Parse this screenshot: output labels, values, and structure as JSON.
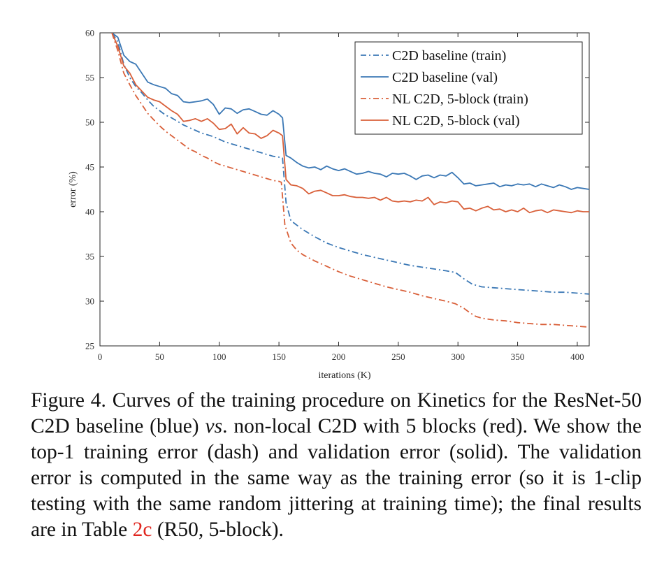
{
  "chart_data": {
    "type": "line",
    "xlabel": "iterations (K)",
    "ylabel": "error (%)",
    "xlim": [
      0,
      410
    ],
    "ylim": [
      25,
      60
    ],
    "xticks": [
      0,
      50,
      100,
      150,
      200,
      250,
      300,
      350,
      400
    ],
    "yticks": [
      25,
      30,
      35,
      40,
      45,
      50,
      55,
      60
    ],
    "grid": false,
    "legend_position": "top-right",
    "series": [
      {
        "name": "C2D baseline (train)",
        "color": "#3b78b5",
        "style": "dashdot",
        "points": [
          [
            10,
            60
          ],
          [
            15,
            59
          ],
          [
            20,
            56.5
          ],
          [
            25,
            55
          ],
          [
            30,
            54
          ],
          [
            35,
            53.3
          ],
          [
            40,
            52.5
          ],
          [
            45,
            51.8
          ],
          [
            50,
            51.3
          ],
          [
            55,
            50.8
          ],
          [
            60,
            50.5
          ],
          [
            65,
            50.1
          ],
          [
            70,
            49.7
          ],
          [
            75,
            49.4
          ],
          [
            80,
            49.1
          ],
          [
            85,
            48.8
          ],
          [
            90,
            48.6
          ],
          [
            95,
            48.4
          ],
          [
            100,
            48.1
          ],
          [
            105,
            47.8
          ],
          [
            110,
            47.6
          ],
          [
            115,
            47.4
          ],
          [
            120,
            47.2
          ],
          [
            125,
            47.0
          ],
          [
            130,
            46.8
          ],
          [
            135,
            46.6
          ],
          [
            140,
            46.4
          ],
          [
            145,
            46.2
          ],
          [
            150,
            46.1
          ],
          [
            153,
            46
          ],
          [
            156,
            41
          ],
          [
            160,
            39
          ],
          [
            170,
            38
          ],
          [
            180,
            37.2
          ],
          [
            190,
            36.5
          ],
          [
            200,
            36
          ],
          [
            210,
            35.6
          ],
          [
            220,
            35.2
          ],
          [
            230,
            34.9
          ],
          [
            240,
            34.6
          ],
          [
            250,
            34.3
          ],
          [
            260,
            34.0
          ],
          [
            270,
            33.8
          ],
          [
            280,
            33.6
          ],
          [
            290,
            33.4
          ],
          [
            298,
            33.2
          ],
          [
            305,
            32.5
          ],
          [
            312,
            31.9
          ],
          [
            320,
            31.6
          ],
          [
            330,
            31.5
          ],
          [
            340,
            31.4
          ],
          [
            350,
            31.3
          ],
          [
            360,
            31.2
          ],
          [
            370,
            31.1
          ],
          [
            380,
            31.0
          ],
          [
            390,
            31.0
          ],
          [
            400,
            30.9
          ],
          [
            410,
            30.8
          ]
        ]
      },
      {
        "name": "C2D baseline (val)",
        "color": "#3b78b5",
        "style": "solid",
        "points": [
          [
            10,
            60
          ],
          [
            15,
            59.5
          ],
          [
            20,
            57.5
          ],
          [
            25,
            56.8
          ],
          [
            30,
            56.5
          ],
          [
            35,
            55.5
          ],
          [
            40,
            54.5
          ],
          [
            45,
            54.2
          ],
          [
            50,
            54.0
          ],
          [
            55,
            53.8
          ],
          [
            60,
            53.2
          ],
          [
            65,
            53.0
          ],
          [
            70,
            52.3
          ],
          [
            75,
            52.2
          ],
          [
            80,
            52.3
          ],
          [
            85,
            52.4
          ],
          [
            90,
            52.6
          ],
          [
            95,
            52.0
          ],
          [
            100,
            50.9
          ],
          [
            105,
            51.6
          ],
          [
            110,
            51.5
          ],
          [
            115,
            51.0
          ],
          [
            120,
            51.4
          ],
          [
            125,
            51.5
          ],
          [
            130,
            51.2
          ],
          [
            135,
            50.9
          ],
          [
            140,
            50.8
          ],
          [
            145,
            51.3
          ],
          [
            150,
            50.9
          ],
          [
            153,
            50.5
          ],
          [
            156,
            46.3
          ],
          [
            160,
            46.0
          ],
          [
            165,
            45.5
          ],
          [
            170,
            45.1
          ],
          [
            175,
            44.9
          ],
          [
            180,
            45.0
          ],
          [
            185,
            44.7
          ],
          [
            190,
            45.1
          ],
          [
            195,
            44.8
          ],
          [
            200,
            44.6
          ],
          [
            205,
            44.8
          ],
          [
            210,
            44.5
          ],
          [
            215,
            44.2
          ],
          [
            220,
            44.3
          ],
          [
            225,
            44.5
          ],
          [
            230,
            44.3
          ],
          [
            235,
            44.2
          ],
          [
            240,
            43.9
          ],
          [
            245,
            44.3
          ],
          [
            250,
            44.2
          ],
          [
            255,
            44.3
          ],
          [
            260,
            44.0
          ],
          [
            265,
            43.6
          ],
          [
            270,
            44.0
          ],
          [
            275,
            44.1
          ],
          [
            280,
            43.8
          ],
          [
            285,
            44.1
          ],
          [
            290,
            44.0
          ],
          [
            295,
            44.4
          ],
          [
            300,
            43.8
          ],
          [
            305,
            43.1
          ],
          [
            310,
            43.2
          ],
          [
            315,
            42.9
          ],
          [
            320,
            43.0
          ],
          [
            325,
            43.1
          ],
          [
            330,
            43.2
          ],
          [
            335,
            42.8
          ],
          [
            340,
            43.0
          ],
          [
            345,
            42.9
          ],
          [
            350,
            43.1
          ],
          [
            355,
            43.0
          ],
          [
            360,
            43.1
          ],
          [
            365,
            42.8
          ],
          [
            370,
            43.1
          ],
          [
            375,
            42.9
          ],
          [
            380,
            42.7
          ],
          [
            385,
            43.0
          ],
          [
            390,
            42.8
          ],
          [
            395,
            42.5
          ],
          [
            400,
            42.7
          ],
          [
            405,
            42.6
          ],
          [
            410,
            42.5
          ]
        ]
      },
      {
        "name": "NL C2D, 5-block (train)",
        "color": "#d9603a",
        "style": "dashdot",
        "points": [
          [
            10,
            60
          ],
          [
            15,
            58
          ],
          [
            20,
            55.5
          ],
          [
            25,
            54.2
          ],
          [
            30,
            53
          ],
          [
            35,
            52
          ],
          [
            40,
            51
          ],
          [
            45,
            50.3
          ],
          [
            50,
            49.6
          ],
          [
            55,
            49.0
          ],
          [
            60,
            48.5
          ],
          [
            65,
            48.0
          ],
          [
            70,
            47.5
          ],
          [
            75,
            47.0
          ],
          [
            80,
            46.7
          ],
          [
            85,
            46.3
          ],
          [
            90,
            46.0
          ],
          [
            95,
            45.6
          ],
          [
            100,
            45.3
          ],
          [
            105,
            45.1
          ],
          [
            110,
            44.9
          ],
          [
            115,
            44.7
          ],
          [
            120,
            44.5
          ],
          [
            125,
            44.3
          ],
          [
            130,
            44.1
          ],
          [
            135,
            43.9
          ],
          [
            140,
            43.7
          ],
          [
            145,
            43.5
          ],
          [
            150,
            43.4
          ],
          [
            152,
            43.3
          ],
          [
            155,
            38.5
          ],
          [
            160,
            36.5
          ],
          [
            165,
            35.7
          ],
          [
            170,
            35.2
          ],
          [
            180,
            34.5
          ],
          [
            190,
            33.9
          ],
          [
            200,
            33.3
          ],
          [
            210,
            32.8
          ],
          [
            220,
            32.4
          ],
          [
            230,
            32.0
          ],
          [
            240,
            31.6
          ],
          [
            250,
            31.3
          ],
          [
            260,
            31.0
          ],
          [
            270,
            30.6
          ],
          [
            280,
            30.3
          ],
          [
            290,
            30.0
          ],
          [
            298,
            29.7
          ],
          [
            305,
            29.2
          ],
          [
            310,
            28.7
          ],
          [
            315,
            28.3
          ],
          [
            320,
            28.1
          ],
          [
            330,
            27.9
          ],
          [
            340,
            27.8
          ],
          [
            350,
            27.6
          ],
          [
            360,
            27.5
          ],
          [
            370,
            27.4
          ],
          [
            380,
            27.4
          ],
          [
            390,
            27.3
          ],
          [
            400,
            27.2
          ],
          [
            410,
            27.1
          ]
        ]
      },
      {
        "name": "NL C2D, 5-block (val)",
        "color": "#d9603a",
        "style": "solid",
        "points": [
          [
            10,
            60
          ],
          [
            15,
            58.5
          ],
          [
            20,
            56.3
          ],
          [
            25,
            55.5
          ],
          [
            30,
            54.2
          ],
          [
            35,
            53.5
          ],
          [
            40,
            52.8
          ],
          [
            45,
            52.5
          ],
          [
            50,
            52.3
          ],
          [
            55,
            51.8
          ],
          [
            60,
            51.3
          ],
          [
            65,
            50.9
          ],
          [
            70,
            50.1
          ],
          [
            75,
            50.2
          ],
          [
            80,
            50.4
          ],
          [
            85,
            50.1
          ],
          [
            90,
            50.4
          ],
          [
            95,
            49.9
          ],
          [
            100,
            49.2
          ],
          [
            105,
            49.3
          ],
          [
            110,
            49.8
          ],
          [
            115,
            48.7
          ],
          [
            120,
            49.4
          ],
          [
            125,
            48.8
          ],
          [
            130,
            48.7
          ],
          [
            135,
            48.2
          ],
          [
            140,
            48.5
          ],
          [
            145,
            49.1
          ],
          [
            150,
            48.8
          ],
          [
            153,
            48.5
          ],
          [
            156,
            43.6
          ],
          [
            160,
            43.0
          ],
          [
            165,
            42.9
          ],
          [
            170,
            42.6
          ],
          [
            175,
            42.0
          ],
          [
            180,
            42.3
          ],
          [
            185,
            42.4
          ],
          [
            190,
            42.1
          ],
          [
            195,
            41.8
          ],
          [
            200,
            41.8
          ],
          [
            205,
            41.9
          ],
          [
            210,
            41.7
          ],
          [
            215,
            41.6
          ],
          [
            220,
            41.6
          ],
          [
            225,
            41.5
          ],
          [
            230,
            41.6
          ],
          [
            235,
            41.3
          ],
          [
            240,
            41.6
          ],
          [
            245,
            41.2
          ],
          [
            250,
            41.1
          ],
          [
            255,
            41.2
          ],
          [
            260,
            41.1
          ],
          [
            265,
            41.3
          ],
          [
            270,
            41.2
          ],
          [
            275,
            41.6
          ],
          [
            280,
            40.8
          ],
          [
            285,
            41.1
          ],
          [
            290,
            41.0
          ],
          [
            295,
            41.2
          ],
          [
            300,
            41.1
          ],
          [
            305,
            40.3
          ],
          [
            310,
            40.4
          ],
          [
            315,
            40.1
          ],
          [
            320,
            40.4
          ],
          [
            325,
            40.6
          ],
          [
            330,
            40.2
          ],
          [
            335,
            40.3
          ],
          [
            340,
            40.0
          ],
          [
            345,
            40.2
          ],
          [
            350,
            40.0
          ],
          [
            355,
            40.4
          ],
          [
            360,
            39.9
          ],
          [
            365,
            40.1
          ],
          [
            370,
            40.2
          ],
          [
            375,
            39.9
          ],
          [
            380,
            40.2
          ],
          [
            385,
            40.1
          ],
          [
            390,
            40.0
          ],
          [
            395,
            39.9
          ],
          [
            400,
            40.1
          ],
          [
            405,
            40.0
          ],
          [
            410,
            40.0
          ]
        ]
      }
    ]
  },
  "caption": {
    "line1": "Figure 4. Curves of the training procedure on Kinetics for the",
    "line2a": "ResNet-50 C2D baseline (blue) ",
    "line2_vs": "vs",
    "line2b": ". non-local C2D with 5 blocks",
    "line3": "(red). We show the top-1 training error (dash) and validation error",
    "line4": "(solid). The validation error is computed in the same way as the",
    "line5": "training error (so it is 1-clip testing with the same random jittering",
    "line6a": "at training time); the final results are in Table ",
    "line6_ref": "2c",
    "line6b": " (R50, 5-block)."
  }
}
